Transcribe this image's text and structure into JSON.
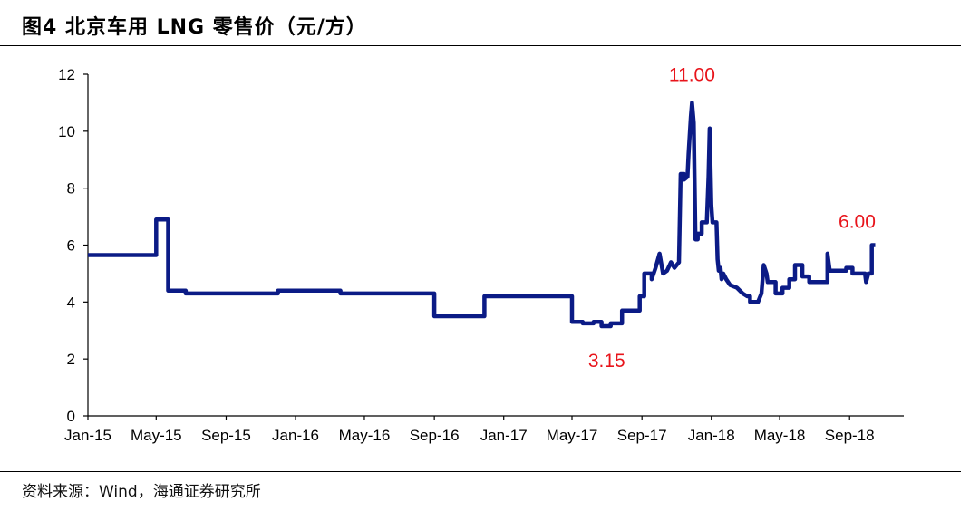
{
  "figure": {
    "title": "图4  北京车用 LNG 零售价（元/方）",
    "source": "资料来源：Wind，海通证券研究所"
  },
  "chart_data": {
    "type": "line",
    "title": "北京车用 LNG 零售价（元/方）",
    "xlabel": "",
    "ylabel": "",
    "ylim": [
      0,
      12
    ],
    "yticks": [
      0,
      2,
      4,
      6,
      8,
      10,
      12
    ],
    "xlim": [
      "2015-01-01",
      "2018-12-31"
    ],
    "xticks": [
      {
        "date": "2015-01-01",
        "label": "Jan-15"
      },
      {
        "date": "2015-05-01",
        "label": "May-15"
      },
      {
        "date": "2015-09-01",
        "label": "Sep-15"
      },
      {
        "date": "2016-01-01",
        "label": "Jan-16"
      },
      {
        "date": "2016-05-01",
        "label": "May-16"
      },
      {
        "date": "2016-09-01",
        "label": "Sep-16"
      },
      {
        "date": "2017-01-01",
        "label": "Jan-17"
      },
      {
        "date": "2017-05-01",
        "label": "May-17"
      },
      {
        "date": "2017-09-01",
        "label": "Sep-17"
      },
      {
        "date": "2018-01-01",
        "label": "Jan-18"
      },
      {
        "date": "2018-05-01",
        "label": "May-18"
      },
      {
        "date": "2018-09-01",
        "label": "Sep-18"
      }
    ],
    "grid": false,
    "line_color": "#0b1b86",
    "annotation_color": "#e8141b",
    "series": [
      {
        "points": [
          [
            "2015-01-01",
            5.65
          ],
          [
            "2015-05-01",
            5.65
          ],
          [
            "2015-05-01",
            6.9
          ],
          [
            "2015-05-22",
            6.9
          ],
          [
            "2015-05-22",
            4.4
          ],
          [
            "2015-06-22",
            4.4
          ],
          [
            "2015-06-22",
            4.3
          ],
          [
            "2015-12-01",
            4.3
          ],
          [
            "2015-12-01",
            4.4
          ],
          [
            "2016-03-20",
            4.4
          ],
          [
            "2016-03-20",
            4.3
          ],
          [
            "2016-09-01",
            4.3
          ],
          [
            "2016-09-01",
            3.5
          ],
          [
            "2016-11-28",
            3.5
          ],
          [
            "2016-11-28",
            4.2
          ],
          [
            "2017-05-01",
            4.2
          ],
          [
            "2017-05-01",
            3.3
          ],
          [
            "2017-05-20",
            3.3
          ],
          [
            "2017-05-20",
            3.25
          ],
          [
            "2017-06-08",
            3.25
          ],
          [
            "2017-06-08",
            3.3
          ],
          [
            "2017-06-22",
            3.3
          ],
          [
            "2017-06-22",
            3.15
          ],
          [
            "2017-07-08",
            3.15
          ],
          [
            "2017-07-08",
            3.25
          ],
          [
            "2017-07-28",
            3.25
          ],
          [
            "2017-07-28",
            3.7
          ],
          [
            "2017-08-28",
            3.7
          ],
          [
            "2017-08-28",
            4.2
          ],
          [
            "2017-09-05",
            4.2
          ],
          [
            "2017-09-05",
            5.0
          ],
          [
            "2017-09-18",
            5.0
          ],
          [
            "2017-09-18",
            4.8
          ],
          [
            "2017-09-25",
            5.2
          ],
          [
            "2017-10-02",
            5.7
          ],
          [
            "2017-10-08",
            5.0
          ],
          [
            "2017-10-15",
            5.1
          ],
          [
            "2017-10-22",
            5.4
          ],
          [
            "2017-10-28",
            5.2
          ],
          [
            "2017-11-05",
            5.4
          ],
          [
            "2017-11-08",
            8.5
          ],
          [
            "2017-11-14",
            8.5
          ],
          [
            "2017-11-14",
            8.3
          ],
          [
            "2017-11-20",
            8.4
          ],
          [
            "2017-11-22",
            9.2
          ],
          [
            "2017-11-26",
            10.5
          ],
          [
            "2017-11-28",
            11.0
          ],
          [
            "2017-12-01",
            10.3
          ],
          [
            "2017-12-04",
            6.2
          ],
          [
            "2017-12-08",
            6.2
          ],
          [
            "2017-12-08",
            6.4
          ],
          [
            "2017-12-15",
            6.4
          ],
          [
            "2017-12-15",
            6.8
          ],
          [
            "2017-12-24",
            6.8
          ],
          [
            "2017-12-27",
            8.4
          ],
          [
            "2017-12-29",
            10.1
          ],
          [
            "2018-01-01",
            7.4
          ],
          [
            "2018-01-03",
            6.8
          ],
          [
            "2018-01-10",
            6.8
          ],
          [
            "2018-01-12",
            5.5
          ],
          [
            "2018-01-14",
            5.1
          ],
          [
            "2018-01-17",
            5.2
          ],
          [
            "2018-01-19",
            4.8
          ],
          [
            "2018-01-22",
            5.0
          ],
          [
            "2018-01-27",
            4.8
          ],
          [
            "2018-02-03",
            4.6
          ],
          [
            "2018-02-15",
            4.5
          ],
          [
            "2018-02-25",
            4.3
          ],
          [
            "2018-03-05",
            4.2
          ],
          [
            "2018-03-10",
            4.2
          ],
          [
            "2018-03-10",
            4.0
          ],
          [
            "2018-03-24",
            4.0
          ],
          [
            "2018-03-30",
            4.3
          ],
          [
            "2018-04-03",
            5.3
          ],
          [
            "2018-04-08",
            5.0
          ],
          [
            "2018-04-10",
            4.7
          ],
          [
            "2018-04-24",
            4.7
          ],
          [
            "2018-04-24",
            4.3
          ],
          [
            "2018-05-06",
            4.3
          ],
          [
            "2018-05-06",
            4.5
          ],
          [
            "2018-05-18",
            4.5
          ],
          [
            "2018-05-18",
            4.8
          ],
          [
            "2018-05-28",
            4.8
          ],
          [
            "2018-05-28",
            5.3
          ],
          [
            "2018-06-10",
            5.3
          ],
          [
            "2018-06-10",
            4.9
          ],
          [
            "2018-06-22",
            4.9
          ],
          [
            "2018-06-22",
            4.7
          ],
          [
            "2018-07-24",
            4.7
          ],
          [
            "2018-07-24",
            5.7
          ],
          [
            "2018-07-28",
            5.1
          ],
          [
            "2018-08-26",
            5.1
          ],
          [
            "2018-08-26",
            5.2
          ],
          [
            "2018-09-06",
            5.2
          ],
          [
            "2018-09-06",
            5.0
          ],
          [
            "2018-09-28",
            5.0
          ],
          [
            "2018-09-30",
            4.7
          ],
          [
            "2018-10-04",
            5.0
          ],
          [
            "2018-10-10",
            5.0
          ],
          [
            "2018-10-10",
            6.0
          ],
          [
            "2018-10-16",
            6.0
          ]
        ]
      }
    ],
    "annotations": [
      {
        "text": "11.00",
        "date": "2017-11-28",
        "value": 11.0,
        "anchor": "above"
      },
      {
        "text": "3.15",
        "date": "2017-07-01",
        "value": 3.15,
        "anchor": "below"
      },
      {
        "text": "6.00",
        "date": "2018-10-16",
        "value": 6.0,
        "anchor": "above-left"
      }
    ]
  }
}
